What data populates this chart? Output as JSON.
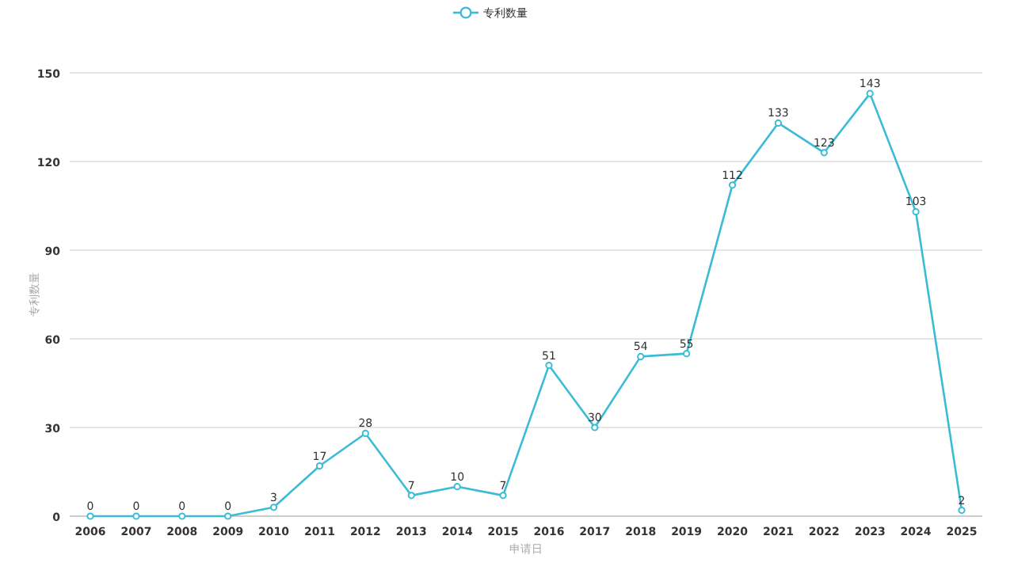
{
  "chart_data": {
    "type": "line",
    "xlabel": "申请日",
    "ylabel": "专利数量",
    "categories": [
      "2006",
      "2007",
      "2008",
      "2009",
      "2010",
      "2011",
      "2012",
      "2013",
      "2014",
      "2015",
      "2016",
      "2017",
      "2018",
      "2019",
      "2020",
      "2021",
      "2022",
      "2023",
      "2024",
      "2025"
    ],
    "series": [
      {
        "name": "专利数量",
        "color": "#3bbcd6",
        "values": [
          0,
          0,
          0,
          0,
          3,
          17,
          28,
          7,
          10,
          7,
          51,
          30,
          54,
          55,
          112,
          133,
          123,
          143,
          103,
          2
        ]
      }
    ],
    "ylim": [
      0,
      150
    ],
    "yticks": [
      0,
      30,
      60,
      90,
      120,
      150
    ],
    "grid": "y",
    "legend": "top",
    "marker": "circle",
    "data_labels": true
  }
}
